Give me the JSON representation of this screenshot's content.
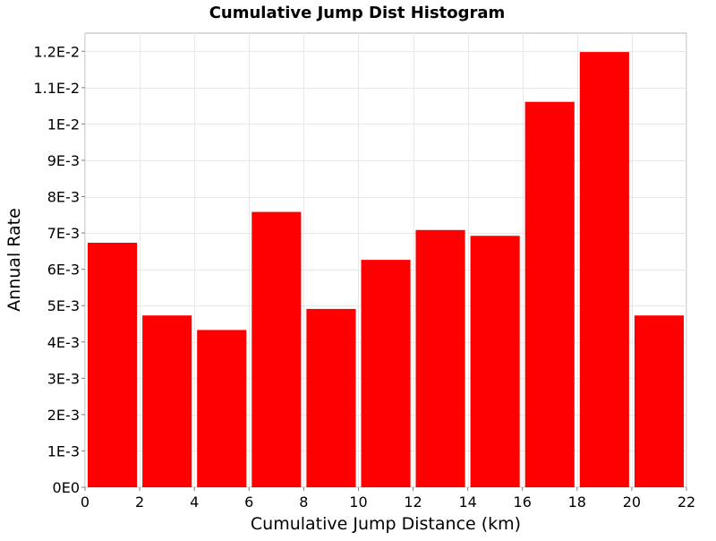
{
  "chart_data": {
    "type": "bar",
    "title": "Cumulative Jump Dist Histogram",
    "xlabel": "Cumulative Jump Distance (km)",
    "ylabel": "Annual Rate",
    "xlim": [
      0,
      22
    ],
    "ylim": [
      0,
      0.0125
    ],
    "x_ticks": [
      0,
      2,
      4,
      6,
      8,
      10,
      12,
      14,
      16,
      18,
      20,
      22
    ],
    "x_tick_labels": [
      "0",
      "2",
      "4",
      "6",
      "8",
      "10",
      "12",
      "14",
      "16",
      "18",
      "20",
      "22"
    ],
    "y_ticks": [
      0,
      0.001,
      0.002,
      0.003,
      0.004,
      0.005,
      0.006,
      0.007,
      0.008,
      0.009,
      0.01,
      0.011,
      0.012
    ],
    "y_tick_labels": [
      "0E0",
      "1E-3",
      "2E-3",
      "3E-3",
      "4E-3",
      "5E-3",
      "6E-3",
      "7E-3",
      "8E-3",
      "9E-3",
      "1E-2",
      "1.1E-2",
      "1.2E-2"
    ],
    "grid": true,
    "bar_color": "#ff0000",
    "bins": [
      {
        "x": 1,
        "value": 0.00673
      },
      {
        "x": 3,
        "value": 0.00473
      },
      {
        "x": 5,
        "value": 0.00433
      },
      {
        "x": 7,
        "value": 0.00758
      },
      {
        "x": 9,
        "value": 0.00491
      },
      {
        "x": 11,
        "value": 0.00626
      },
      {
        "x": 13,
        "value": 0.00708
      },
      {
        "x": 15,
        "value": 0.00692
      },
      {
        "x": 17,
        "value": 0.01061
      },
      {
        "x": 19,
        "value": 0.01198
      },
      {
        "x": 21,
        "value": 0.00473
      }
    ]
  }
}
